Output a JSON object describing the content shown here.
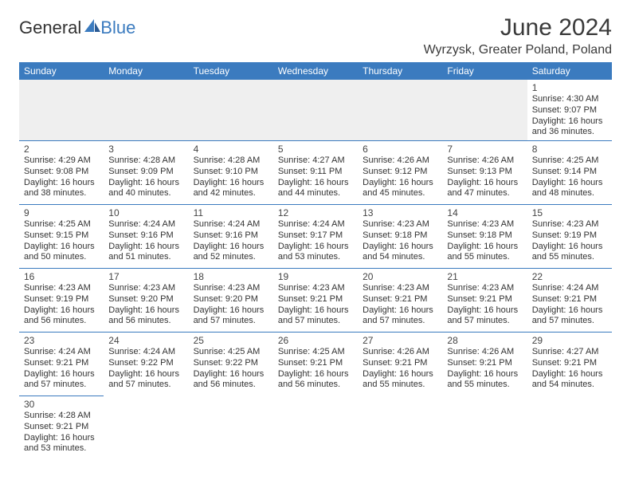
{
  "logo": {
    "text1": "General",
    "text2": "Blue"
  },
  "title": "June 2024",
  "location": "Wyrzysk, Greater Poland, Poland",
  "colors": {
    "header_bg": "#3b7bbf",
    "header_fg": "#ffffff",
    "border": "#3b7bbf",
    "blank_bg": "#efefef"
  },
  "weekdays": [
    "Sunday",
    "Monday",
    "Tuesday",
    "Wednesday",
    "Thursday",
    "Friday",
    "Saturday"
  ],
  "weeks": [
    [
      null,
      null,
      null,
      null,
      null,
      null,
      {
        "n": "1",
        "sr": "Sunrise: 4:30 AM",
        "ss": "Sunset: 9:07 PM",
        "d1": "Daylight: 16 hours",
        "d2": "and 36 minutes."
      }
    ],
    [
      {
        "n": "2",
        "sr": "Sunrise: 4:29 AM",
        "ss": "Sunset: 9:08 PM",
        "d1": "Daylight: 16 hours",
        "d2": "and 38 minutes."
      },
      {
        "n": "3",
        "sr": "Sunrise: 4:28 AM",
        "ss": "Sunset: 9:09 PM",
        "d1": "Daylight: 16 hours",
        "d2": "and 40 minutes."
      },
      {
        "n": "4",
        "sr": "Sunrise: 4:28 AM",
        "ss": "Sunset: 9:10 PM",
        "d1": "Daylight: 16 hours",
        "d2": "and 42 minutes."
      },
      {
        "n": "5",
        "sr": "Sunrise: 4:27 AM",
        "ss": "Sunset: 9:11 PM",
        "d1": "Daylight: 16 hours",
        "d2": "and 44 minutes."
      },
      {
        "n": "6",
        "sr": "Sunrise: 4:26 AM",
        "ss": "Sunset: 9:12 PM",
        "d1": "Daylight: 16 hours",
        "d2": "and 45 minutes."
      },
      {
        "n": "7",
        "sr": "Sunrise: 4:26 AM",
        "ss": "Sunset: 9:13 PM",
        "d1": "Daylight: 16 hours",
        "d2": "and 47 minutes."
      },
      {
        "n": "8",
        "sr": "Sunrise: 4:25 AM",
        "ss": "Sunset: 9:14 PM",
        "d1": "Daylight: 16 hours",
        "d2": "and 48 minutes."
      }
    ],
    [
      {
        "n": "9",
        "sr": "Sunrise: 4:25 AM",
        "ss": "Sunset: 9:15 PM",
        "d1": "Daylight: 16 hours",
        "d2": "and 50 minutes."
      },
      {
        "n": "10",
        "sr": "Sunrise: 4:24 AM",
        "ss": "Sunset: 9:16 PM",
        "d1": "Daylight: 16 hours",
        "d2": "and 51 minutes."
      },
      {
        "n": "11",
        "sr": "Sunrise: 4:24 AM",
        "ss": "Sunset: 9:16 PM",
        "d1": "Daylight: 16 hours",
        "d2": "and 52 minutes."
      },
      {
        "n": "12",
        "sr": "Sunrise: 4:24 AM",
        "ss": "Sunset: 9:17 PM",
        "d1": "Daylight: 16 hours",
        "d2": "and 53 minutes."
      },
      {
        "n": "13",
        "sr": "Sunrise: 4:23 AM",
        "ss": "Sunset: 9:18 PM",
        "d1": "Daylight: 16 hours",
        "d2": "and 54 minutes."
      },
      {
        "n": "14",
        "sr": "Sunrise: 4:23 AM",
        "ss": "Sunset: 9:18 PM",
        "d1": "Daylight: 16 hours",
        "d2": "and 55 minutes."
      },
      {
        "n": "15",
        "sr": "Sunrise: 4:23 AM",
        "ss": "Sunset: 9:19 PM",
        "d1": "Daylight: 16 hours",
        "d2": "and 55 minutes."
      }
    ],
    [
      {
        "n": "16",
        "sr": "Sunrise: 4:23 AM",
        "ss": "Sunset: 9:19 PM",
        "d1": "Daylight: 16 hours",
        "d2": "and 56 minutes."
      },
      {
        "n": "17",
        "sr": "Sunrise: 4:23 AM",
        "ss": "Sunset: 9:20 PM",
        "d1": "Daylight: 16 hours",
        "d2": "and 56 minutes."
      },
      {
        "n": "18",
        "sr": "Sunrise: 4:23 AM",
        "ss": "Sunset: 9:20 PM",
        "d1": "Daylight: 16 hours",
        "d2": "and 57 minutes."
      },
      {
        "n": "19",
        "sr": "Sunrise: 4:23 AM",
        "ss": "Sunset: 9:21 PM",
        "d1": "Daylight: 16 hours",
        "d2": "and 57 minutes."
      },
      {
        "n": "20",
        "sr": "Sunrise: 4:23 AM",
        "ss": "Sunset: 9:21 PM",
        "d1": "Daylight: 16 hours",
        "d2": "and 57 minutes."
      },
      {
        "n": "21",
        "sr": "Sunrise: 4:23 AM",
        "ss": "Sunset: 9:21 PM",
        "d1": "Daylight: 16 hours",
        "d2": "and 57 minutes."
      },
      {
        "n": "22",
        "sr": "Sunrise: 4:24 AM",
        "ss": "Sunset: 9:21 PM",
        "d1": "Daylight: 16 hours",
        "d2": "and 57 minutes."
      }
    ],
    [
      {
        "n": "23",
        "sr": "Sunrise: 4:24 AM",
        "ss": "Sunset: 9:21 PM",
        "d1": "Daylight: 16 hours",
        "d2": "and 57 minutes."
      },
      {
        "n": "24",
        "sr": "Sunrise: 4:24 AM",
        "ss": "Sunset: 9:22 PM",
        "d1": "Daylight: 16 hours",
        "d2": "and 57 minutes."
      },
      {
        "n": "25",
        "sr": "Sunrise: 4:25 AM",
        "ss": "Sunset: 9:22 PM",
        "d1": "Daylight: 16 hours",
        "d2": "and 56 minutes."
      },
      {
        "n": "26",
        "sr": "Sunrise: 4:25 AM",
        "ss": "Sunset: 9:21 PM",
        "d1": "Daylight: 16 hours",
        "d2": "and 56 minutes."
      },
      {
        "n": "27",
        "sr": "Sunrise: 4:26 AM",
        "ss": "Sunset: 9:21 PM",
        "d1": "Daylight: 16 hours",
        "d2": "and 55 minutes."
      },
      {
        "n": "28",
        "sr": "Sunrise: 4:26 AM",
        "ss": "Sunset: 9:21 PM",
        "d1": "Daylight: 16 hours",
        "d2": "and 55 minutes."
      },
      {
        "n": "29",
        "sr": "Sunrise: 4:27 AM",
        "ss": "Sunset: 9:21 PM",
        "d1": "Daylight: 16 hours",
        "d2": "and 54 minutes."
      }
    ],
    [
      {
        "n": "30",
        "sr": "Sunrise: 4:28 AM",
        "ss": "Sunset: 9:21 PM",
        "d1": "Daylight: 16 hours",
        "d2": "and 53 minutes."
      },
      null,
      null,
      null,
      null,
      null,
      null
    ]
  ]
}
